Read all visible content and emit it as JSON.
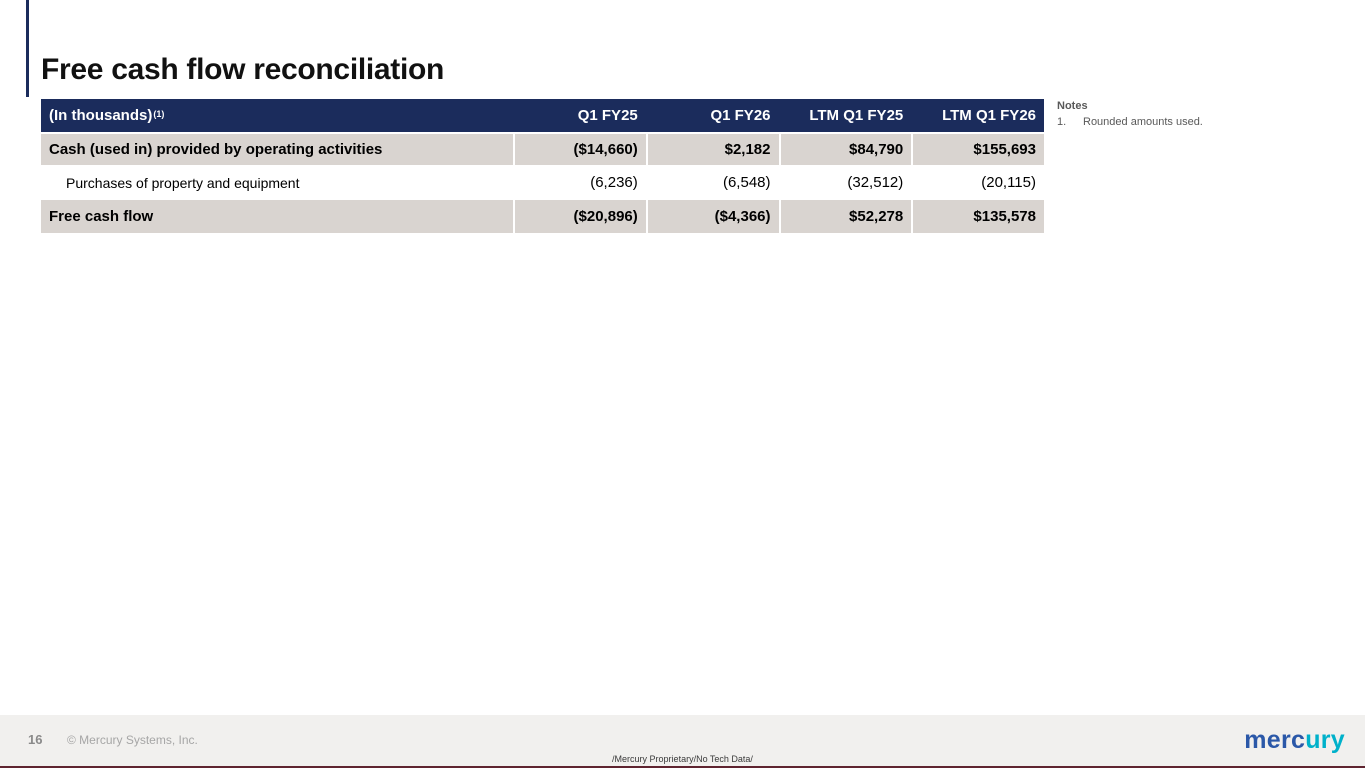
{
  "slide": {
    "title": "Free cash flow reconciliation"
  },
  "table": {
    "header": {
      "label": "(In thousands)",
      "label_superscript": "(1)",
      "columns": [
        "Q1 FY25",
        "Q1 FY26",
        "LTM Q1 FY25",
        "LTM Q1 FY26"
      ]
    },
    "rows": [
      {
        "label": "Cash (used in) provided by operating activities",
        "values": [
          "($14,660)",
          "$2,182",
          "$84,790",
          "$155,693"
        ]
      },
      {
        "label": "Purchases of property and equipment",
        "values": [
          "(6,236)",
          "(6,548)",
          "(32,512)",
          "(20,115)"
        ]
      },
      {
        "label": "Free cash flow",
        "values": [
          "($20,896)",
          "($4,366)",
          "$52,278",
          "$135,578"
        ]
      }
    ]
  },
  "notes": {
    "heading": "Notes",
    "items": [
      {
        "number": "1.",
        "text": "Rounded amounts used."
      }
    ]
  },
  "footer": {
    "page_number": "16",
    "copyright": "© Mercury Systems, Inc.",
    "classification": "/Mercury Proprietary/No Tech Data/",
    "logo_primary": "merc",
    "logo_secondary": "ury"
  },
  "colors": {
    "table_header_bg": "#1b2c5c",
    "shaded_row_bg": "#d9d4d0",
    "footer_bg": "#f1f0ee",
    "notes_text": "#595959",
    "logo_blue": "#2b58a8",
    "logo_cyan": "#00b1ca",
    "bottom_accent": "#5f2430"
  }
}
